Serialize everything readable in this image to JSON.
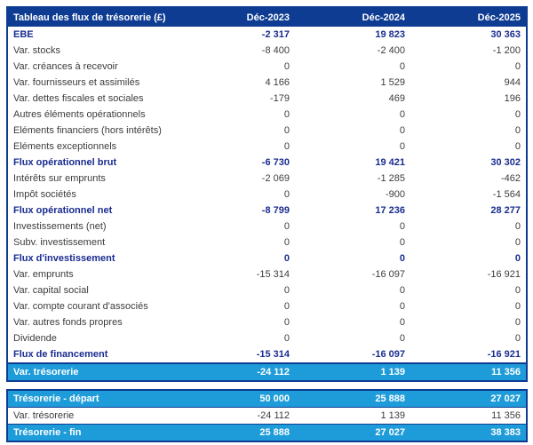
{
  "colors": {
    "navy": "#0e3c92",
    "cyan": "#1e9cd9",
    "bold_text": "#1a2c91",
    "body_text": "#3c3c3c"
  },
  "table": {
    "title": "Tableau des flux de trésorerie (£)",
    "columns": [
      "Déc-2023",
      "Déc-2024",
      "Déc-2025"
    ],
    "rows": [
      {
        "label": "EBE",
        "values": [
          "-2 317",
          "19 823",
          "30 363"
        ],
        "style": "bold"
      },
      {
        "label": "Var. stocks",
        "values": [
          "-8 400",
          "-2 400",
          "-1 200"
        ],
        "style": "normal"
      },
      {
        "label": "Var. créances à recevoir",
        "values": [
          "0",
          "0",
          "0"
        ],
        "style": "normal"
      },
      {
        "label": "Var. fournisseurs et assimilés",
        "values": [
          "4 166",
          "1 529",
          "944"
        ],
        "style": "normal"
      },
      {
        "label": "Var. dettes fiscales et sociales",
        "values": [
          "-179",
          "469",
          "196"
        ],
        "style": "normal"
      },
      {
        "label": "Autres éléments opérationnels",
        "values": [
          "0",
          "0",
          "0"
        ],
        "style": "normal"
      },
      {
        "label": "Eléments financiers (hors intérêts)",
        "values": [
          "0",
          "0",
          "0"
        ],
        "style": "normal"
      },
      {
        "label": "Eléments exceptionnels",
        "values": [
          "0",
          "0",
          "0"
        ],
        "style": "normal"
      },
      {
        "label": "Flux opérationnel brut",
        "values": [
          "-6 730",
          "19 421",
          "30 302"
        ],
        "style": "bold"
      },
      {
        "label": "Intérêts sur emprunts",
        "values": [
          "-2 069",
          "-1 285",
          "-462"
        ],
        "style": "normal"
      },
      {
        "label": "Impôt sociétés",
        "values": [
          "0",
          "-900",
          "-1 564"
        ],
        "style": "normal"
      },
      {
        "label": "Flux opérationnel net",
        "values": [
          "-8 799",
          "17 236",
          "28 277"
        ],
        "style": "bold"
      },
      {
        "label": "Investissements (net)",
        "values": [
          "0",
          "0",
          "0"
        ],
        "style": "normal"
      },
      {
        "label": "Subv. investissement",
        "values": [
          "0",
          "0",
          "0"
        ],
        "style": "normal"
      },
      {
        "label": "Flux d'investissement",
        "values": [
          "0",
          "0",
          "0"
        ],
        "style": "bold"
      },
      {
        "label": "Var. emprunts",
        "values": [
          "-15 314",
          "-16 097",
          "-16 921"
        ],
        "style": "normal"
      },
      {
        "label": "Var. capital social",
        "values": [
          "0",
          "0",
          "0"
        ],
        "style": "normal"
      },
      {
        "label": "Var. compte courant d'associés",
        "values": [
          "0",
          "0",
          "0"
        ],
        "style": "normal"
      },
      {
        "label": "Var. autres fonds propres",
        "values": [
          "0",
          "0",
          "0"
        ],
        "style": "normal"
      },
      {
        "label": "Dividende",
        "values": [
          "0",
          "0",
          "0"
        ],
        "style": "normal"
      },
      {
        "label": "Flux de financement",
        "values": [
          "-15 314",
          "-16 097",
          "-16 921"
        ],
        "style": "bold"
      },
      {
        "label": "Var. trésorerie",
        "values": [
          "-24 112",
          "1 139",
          "11 356"
        ],
        "style": "highlight"
      }
    ]
  },
  "summary": {
    "rows": [
      {
        "label": "Trésorerie - départ",
        "values": [
          "50 000",
          "25 888",
          "27 027"
        ],
        "style": "highlight"
      },
      {
        "label": "Var. trésorerie",
        "values": [
          "-24 112",
          "1 139",
          "11 356"
        ],
        "style": "normal"
      },
      {
        "label": "Trésorerie - fin",
        "values": [
          "25 888",
          "27 027",
          "38 383"
        ],
        "style": "highlight"
      }
    ]
  }
}
